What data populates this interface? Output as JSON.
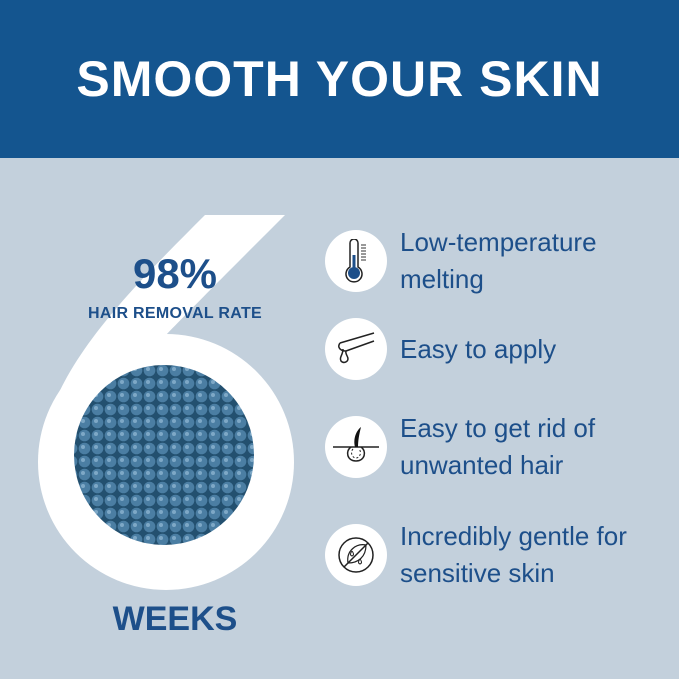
{
  "title": "SMOOTH YOUR SKIN",
  "stat": {
    "value": "98%",
    "label": "HAIR REMOVAL RATE",
    "big_number": "6",
    "unit": "WEEKS"
  },
  "features": [
    {
      "icon": "thermometer-icon",
      "text": "Low-temperature melting"
    },
    {
      "icon": "wax-spatula-icon",
      "text": "Easy to apply"
    },
    {
      "icon": "hair-follicle-icon",
      "text": "Easy to get rid of unwanted hair"
    },
    {
      "icon": "no-irritation-leaf-icon",
      "text": "Incredibly gentle for sensitive skin"
    }
  ],
  "colors": {
    "banner": "#14558f",
    "background": "#c3d0dc",
    "text": "#1d4f8a",
    "beads": "#3a6a8c"
  }
}
